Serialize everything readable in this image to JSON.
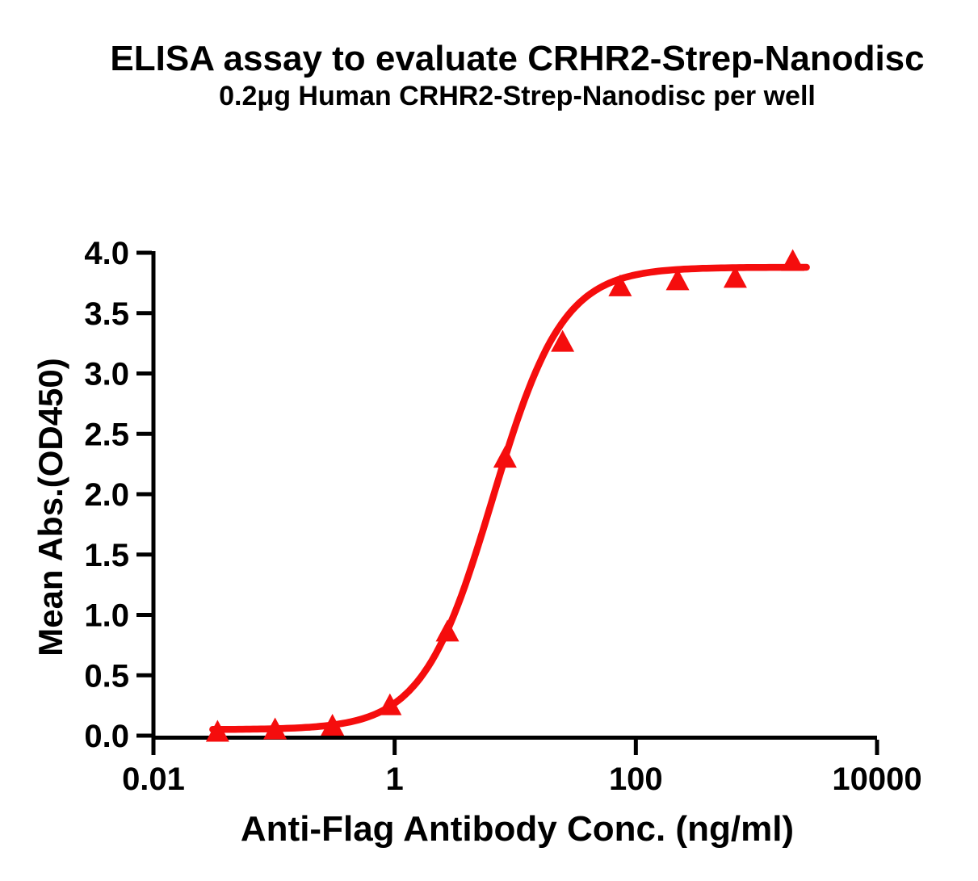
{
  "chart_data": {
    "type": "scatter",
    "title": "ELISA assay to evaluate CRHR2-Strep-Nanodisc",
    "subtitle": "0.2μg Human CRHR2-Strep-Nanodisc per well",
    "xlabel": "Anti-Flag Antibody Conc. (ng/ml)",
    "ylabel": "Mean Abs.(OD450)",
    "x_scale": "log10",
    "xlim": [
      0.01,
      10000
    ],
    "ylim": [
      0.0,
      4.0
    ],
    "grid": false,
    "legend": "none",
    "x_ticks": {
      "values": [
        0.01,
        1,
        100,
        10000
      ],
      "labels": [
        "0.01",
        "1",
        "100",
        "10000"
      ]
    },
    "y_ticks": {
      "values": [
        0,
        0.5,
        1,
        1.5,
        2,
        2.5,
        3,
        3.5,
        4
      ],
      "labels": [
        "0.0",
        "0.5",
        "1.0",
        "1.5",
        "2.0",
        "2.5",
        "3.0",
        "3.5",
        "4.0"
      ]
    },
    "series": [
      {
        "name": "Human CRHR2-Strep-Nanodisc",
        "marker": "triangle-up",
        "color": "#F50D0D",
        "points": [
          {
            "x": 0.034,
            "y": 0.03
          },
          {
            "x": 0.102,
            "y": 0.05
          },
          {
            "x": 0.305,
            "y": 0.08
          },
          {
            "x": 0.914,
            "y": 0.25
          },
          {
            "x": 2.74,
            "y": 0.86
          },
          {
            "x": 8.23,
            "y": 2.3
          },
          {
            "x": 24.7,
            "y": 3.26
          },
          {
            "x": 74.1,
            "y": 3.72
          },
          {
            "x": 222,
            "y": 3.77
          },
          {
            "x": 667,
            "y": 3.79
          },
          {
            "x": 2000,
            "y": 3.93
          }
        ]
      }
    ],
    "fit_curve": {
      "model": "4PL",
      "bottom": 0.05,
      "top": 3.88,
      "ec50": 6.5,
      "hill": 1.5,
      "x_range": [
        0.031,
        2600
      ],
      "color": "#F50D0D"
    },
    "colors": {
      "axis": "#000000",
      "curve": "#F50D0D",
      "background": "#ffffff"
    }
  }
}
